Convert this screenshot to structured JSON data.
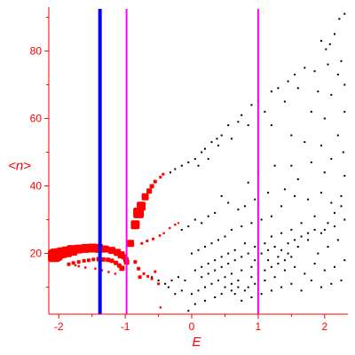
{
  "chart_data": {
    "type": "scatter",
    "xlabel": "E",
    "ylabel": "<n>",
    "xlim": [
      -2.15,
      2.35
    ],
    "ylim": [
      2,
      93
    ],
    "xticks": [
      -2,
      -1,
      0,
      1,
      2
    ],
    "xtick_labels": [
      "-2",
      "-1",
      "0",
      "1",
      "2"
    ],
    "yticks": [
      20,
      40,
      60,
      80
    ],
    "ytick_labels": [
      "20",
      "40",
      "60",
      "80"
    ],
    "vertical_lines": [
      {
        "x": -1.38,
        "color": "#0000ff",
        "style": "thick"
      },
      {
        "x": -0.98,
        "color": "#ff00ff",
        "style": "thin"
      },
      {
        "x": 1.0,
        "color": "#ff00ff",
        "style": "thin"
      }
    ],
    "series": [
      {
        "color": "#ff0000",
        "marker": "variable-size",
        "points": [
          [
            -2.07,
            19.3,
            7
          ],
          [
            -2.04,
            19.6,
            7
          ],
          [
            -2.0,
            20.0,
            6
          ],
          [
            -1.95,
            20.2,
            6
          ],
          [
            -1.88,
            20.5,
            6
          ],
          [
            -1.8,
            20.9,
            6
          ],
          [
            -1.7,
            21.3,
            5
          ],
          [
            -1.6,
            21.5,
            5
          ],
          [
            -1.5,
            21.6,
            5
          ],
          [
            -1.4,
            21.5,
            5
          ],
          [
            -1.3,
            21.3,
            4
          ],
          [
            -1.2,
            20.9,
            4
          ],
          [
            -1.12,
            20.3,
            4
          ],
          [
            -1.06,
            19.6,
            4
          ],
          [
            -1.02,
            19.0,
            3
          ],
          [
            -0.99,
            18.2,
            3
          ],
          [
            -0.98,
            17.4,
            3
          ],
          [
            -1.85,
            16.8,
            2
          ],
          [
            -1.78,
            17.2,
            2
          ],
          [
            -1.7,
            17.5,
            2
          ],
          [
            -1.62,
            17.8,
            2
          ],
          [
            -1.55,
            18.0,
            2
          ],
          [
            -1.48,
            18.2,
            2
          ],
          [
            -1.4,
            18.3,
            2.5
          ],
          [
            -1.33,
            18.2,
            2.5
          ],
          [
            -1.26,
            18.1,
            2.5
          ],
          [
            -1.2,
            17.8,
            2.5
          ],
          [
            -1.14,
            17.2,
            2.5
          ],
          [
            -1.09,
            16.4,
            2.5
          ],
          [
            -1.05,
            15.6,
            3
          ],
          [
            -0.92,
            23.0,
            4
          ],
          [
            -0.85,
            28.5,
            5
          ],
          [
            -0.8,
            32.0,
            6
          ],
          [
            -0.76,
            34.0,
            5
          ],
          [
            -0.7,
            36.8,
            4
          ],
          [
            -0.64,
            38.5,
            3
          ],
          [
            -0.6,
            39.9,
            2.5
          ],
          [
            -0.55,
            41.3,
            2
          ],
          [
            -0.47,
            42.6,
            1.5
          ],
          [
            -0.43,
            43.5,
            1.5
          ],
          [
            -0.85,
            17.5,
            2
          ],
          [
            -0.8,
            15.5,
            2
          ],
          [
            -0.78,
            13.0,
            2
          ],
          [
            -0.72,
            14.0,
            1.5
          ],
          [
            -0.66,
            13.2,
            1.5
          ],
          [
            -0.6,
            12.5,
            1.5
          ],
          [
            -0.55,
            14.6,
            1.5
          ],
          [
            -0.5,
            11.0,
            1.5
          ],
          [
            -0.47,
            4.0,
            1.2
          ],
          [
            -0.75,
            23.0,
            1.5
          ],
          [
            -0.67,
            23.7,
            1.5
          ],
          [
            -0.58,
            24.3,
            1.5
          ],
          [
            -0.48,
            25.3,
            1.3
          ],
          [
            -0.42,
            26.0,
            1.2
          ],
          [
            -0.33,
            27.5,
            1.2
          ],
          [
            -0.25,
            28.5,
            1.2
          ],
          [
            -0.2,
            29.0,
            1.0
          ],
          [
            -1.45,
            15.5,
            1.2
          ],
          [
            -1.35,
            15.0,
            1.2
          ],
          [
            -1.25,
            14.5,
            1.2
          ],
          [
            -1.15,
            14.0,
            1.2
          ],
          [
            -1.6,
            15.8,
            1.2
          ],
          [
            -1.7,
            16.2,
            1.2
          ],
          [
            -1.75,
            16.5,
            1.2
          ]
        ]
      },
      {
        "color": "#000000",
        "marker": "dot",
        "points": [
          [
            2.3,
            91
          ],
          [
            2.22,
            89.5
          ],
          [
            2.15,
            85
          ],
          [
            2.08,
            82
          ],
          [
            2.02,
            80.5
          ],
          [
            1.95,
            83
          ],
          [
            2.25,
            77
          ],
          [
            2.05,
            76
          ],
          [
            2.2,
            73
          ],
          [
            1.85,
            74
          ],
          [
            1.7,
            75
          ],
          [
            1.55,
            73
          ],
          [
            1.45,
            71
          ],
          [
            1.3,
            69
          ],
          [
            1.2,
            68
          ],
          [
            1.9,
            68
          ],
          [
            1.6,
            69
          ],
          [
            2.3,
            70
          ],
          [
            2.1,
            67
          ],
          [
            1.4,
            65
          ],
          [
            1.0,
            65
          ],
          [
            0.9,
            64
          ],
          [
            0.75,
            61
          ],
          [
            0.7,
            59
          ],
          [
            1.1,
            62
          ],
          [
            1.8,
            62
          ],
          [
            2.0,
            60
          ],
          [
            2.3,
            62
          ],
          [
            0.55,
            58
          ],
          [
            0.45,
            55
          ],
          [
            0.38,
            54
          ],
          [
            0.3,
            53
          ],
          [
            0.2,
            51
          ],
          [
            0.15,
            50
          ],
          [
            0.05,
            48
          ],
          [
            -0.05,
            47
          ],
          [
            -0.15,
            46
          ],
          [
            -0.25,
            45
          ],
          [
            -0.32,
            44
          ],
          [
            0.1,
            46
          ],
          [
            0.25,
            48
          ],
          [
            0.4,
            52
          ],
          [
            0.6,
            54
          ],
          [
            0.85,
            58
          ],
          [
            1.2,
            58
          ],
          [
            1.5,
            55
          ],
          [
            1.7,
            53
          ],
          [
            1.95,
            52
          ],
          [
            2.2,
            55
          ],
          [
            2.28,
            50
          ],
          [
            2.1,
            48
          ],
          [
            1.8,
            47
          ],
          [
            1.5,
            46
          ],
          [
            1.25,
            46
          ],
          [
            1.0,
            44
          ],
          [
            0.85,
            41
          ],
          [
            2.3,
            43
          ],
          [
            2.0,
            44
          ],
          [
            1.6,
            42
          ],
          [
            1.4,
            39
          ],
          [
            1.15,
            38
          ],
          [
            0.95,
            36
          ],
          [
            0.8,
            34
          ],
          [
            0.7,
            33
          ],
          [
            0.55,
            35
          ],
          [
            0.45,
            37
          ],
          [
            0.35,
            32
          ],
          [
            0.25,
            31
          ],
          [
            0.15,
            29
          ],
          [
            0.05,
            30
          ],
          [
            -0.05,
            28
          ],
          [
            -0.15,
            27
          ],
          [
            2.25,
            37
          ],
          [
            2.1,
            35
          ],
          [
            1.95,
            38
          ],
          [
            1.75,
            36
          ],
          [
            1.55,
            37
          ],
          [
            1.35,
            34
          ],
          [
            1.2,
            31
          ],
          [
            1.05,
            30
          ],
          [
            0.9,
            29
          ],
          [
            0.75,
            28
          ],
          [
            0.6,
            27
          ],
          [
            0.5,
            25
          ],
          [
            0.4,
            24
          ],
          [
            0.3,
            23
          ],
          [
            0.2,
            22
          ],
          [
            0.1,
            21
          ],
          [
            0.0,
            20
          ],
          [
            2.3,
            30
          ],
          [
            2.15,
            28
          ],
          [
            2.0,
            27
          ],
          [
            1.85,
            31
          ],
          [
            1.65,
            29
          ],
          [
            1.5,
            27
          ],
          [
            1.35,
            26
          ],
          [
            1.2,
            25
          ],
          [
            1.1,
            23
          ],
          [
            0.95,
            22
          ],
          [
            0.8,
            23
          ],
          [
            0.65,
            21
          ],
          [
            0.55,
            20
          ],
          [
            0.45,
            19
          ],
          [
            0.35,
            18
          ],
          [
            0.25,
            17
          ],
          [
            0.15,
            16
          ],
          [
            0.05,
            15
          ],
          [
            2.2,
            24
          ],
          [
            2.05,
            22
          ],
          [
            1.9,
            20
          ],
          [
            1.75,
            24
          ],
          [
            1.6,
            22
          ],
          [
            1.45,
            20
          ],
          [
            1.3,
            19
          ],
          [
            1.15,
            18
          ],
          [
            1.0,
            17
          ],
          [
            0.9,
            16
          ],
          [
            0.75,
            15
          ],
          [
            0.6,
            14
          ],
          [
            0.5,
            13
          ],
          [
            0.4,
            12
          ],
          [
            0.3,
            11
          ],
          [
            0.2,
            10
          ],
          [
            0.1,
            9
          ],
          [
            0.0,
            8
          ],
          [
            2.3,
            18
          ],
          [
            2.15,
            16
          ],
          [
            2.0,
            15
          ],
          [
            1.85,
            17
          ],
          [
            1.7,
            14
          ],
          [
            1.55,
            16
          ],
          [
            1.4,
            15
          ],
          [
            1.25,
            13
          ],
          [
            1.1,
            12
          ],
          [
            0.95,
            11
          ],
          [
            0.85,
            10
          ],
          [
            0.7,
            12
          ],
          [
            0.6,
            9
          ],
          [
            0.45,
            8
          ],
          [
            0.35,
            7
          ],
          [
            0.2,
            6
          ],
          [
            0.05,
            5
          ],
          [
            -0.05,
            3
          ],
          [
            2.25,
            12
          ],
          [
            2.1,
            11
          ],
          [
            1.95,
            10
          ],
          [
            1.8,
            12
          ],
          [
            1.65,
            9
          ],
          [
            1.5,
            11
          ],
          [
            1.35,
            10
          ],
          [
            1.2,
            9
          ],
          [
            1.05,
            8
          ],
          [
            0.9,
            7
          ],
          [
            0.75,
            6
          ],
          [
            0.65,
            8
          ],
          [
            -0.1,
            12
          ],
          [
            -0.2,
            13
          ],
          [
            -0.3,
            12
          ],
          [
            -0.4,
            11
          ],
          [
            -0.5,
            12
          ],
          [
            -0.6,
            13
          ],
          [
            -0.15,
            9
          ],
          [
            -0.25,
            8
          ],
          [
            -0.35,
            10
          ],
          [
            0.15,
            13
          ],
          [
            0.25,
            14
          ],
          [
            0.35,
            15
          ],
          [
            0.45,
            16
          ],
          [
            0.55,
            17
          ],
          [
            0.65,
            18
          ],
          [
            0.75,
            19
          ],
          [
            0.85,
            20
          ],
          [
            0.95,
            18
          ],
          [
            1.05,
            20
          ],
          [
            1.15,
            21
          ],
          [
            1.25,
            22
          ],
          [
            1.35,
            21
          ],
          [
            1.45,
            23
          ],
          [
            1.55,
            24
          ],
          [
            1.65,
            25
          ],
          [
            1.75,
            26
          ],
          [
            1.85,
            27
          ],
          [
            1.95,
            26
          ],
          [
            2.05,
            29
          ],
          [
            2.15,
            32
          ],
          [
            2.25,
            34
          ],
          [
            0.5,
            10
          ],
          [
            0.6,
            11
          ],
          [
            0.7,
            10
          ],
          [
            0.8,
            9
          ],
          [
            0.9,
            13
          ],
          [
            1.0,
            14
          ],
          [
            1.1,
            15
          ],
          [
            1.2,
            16
          ],
          [
            1.3,
            17
          ],
          [
            1.4,
            18
          ],
          [
            1.5,
            19
          ]
        ]
      }
    ]
  }
}
